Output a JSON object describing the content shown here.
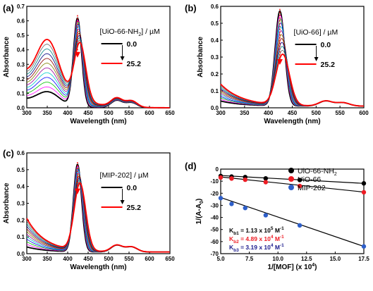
{
  "chart_data": [
    {
      "id": "a",
      "type": "line",
      "panel_label": "(a)",
      "xlabel": "Wavelength (nm)",
      "ylabel": "Absorbance",
      "xlim": [
        300,
        650
      ],
      "ylim": [
        0,
        0.7
      ],
      "xticks": [
        "300",
        "350",
        "400",
        "450",
        "500",
        "550",
        "600",
        "650"
      ],
      "yticks": [
        "0.0",
        "0.1",
        "0.2",
        "0.3",
        "0.4",
        "0.5",
        "0.6",
        "0.7"
      ],
      "legend_title": "[UiO-66-NH2] / µM",
      "legend_entries": [
        {
          "label": "0.0",
          "color": "#000000"
        },
        {
          "label": "25.2",
          "color": "#ff0000"
        }
      ],
      "series_count": 12,
      "colors": [
        "#000000",
        "#ff00ff",
        "#00c000",
        "#0000ff",
        "#00cccc",
        "#990099",
        "#808000",
        "#8b0000",
        "#000080",
        "#008080",
        "#666666",
        "#ff0000"
      ],
      "peaks": [
        {
          "x": 424,
          "h": 0.6,
          "start": 0.61,
          "end": 0.4
        },
        {
          "x": 520,
          "h": 0.05,
          "start": 0.05,
          "end": 0.06
        },
        {
          "x": 556,
          "h": 0.035,
          "start": 0.035,
          "end": 0.045
        }
      ],
      "shoulder": {
        "x": 352,
        "start": 0.09,
        "end": 0.38
      }
    },
    {
      "id": "b",
      "type": "line",
      "panel_label": "(b)",
      "xlabel": "Wavelength (nm)",
      "ylabel": "Absorbance",
      "xlim": [
        300,
        600
      ],
      "ylim": [
        0,
        0.6
      ],
      "xticks": [
        "300",
        "350",
        "400",
        "450",
        "500",
        "550",
        "600"
      ],
      "yticks": [
        "0.0",
        "0.1",
        "0.2",
        "0.3",
        "0.4",
        "0.5",
        "0.6"
      ],
      "legend_title": "[UiO-66] / µM",
      "legend_entries": [
        {
          "label": "0.0",
          "color": "#000000"
        },
        {
          "label": "25.2",
          "color": "#ff0000"
        }
      ],
      "series_count": 12,
      "colors": [
        "#000000",
        "#ff00ff",
        "#00c000",
        "#0000ff",
        "#00cccc",
        "#990099",
        "#808000",
        "#8b0000",
        "#000080",
        "#008080",
        "#666666",
        "#ff0000"
      ],
      "peaks": [
        {
          "x": 424,
          "h": 0.56,
          "start": 0.56,
          "end": 0.3
        },
        {
          "x": 520,
          "h": 0.03,
          "start": 0.03,
          "end": 0.03
        },
        {
          "x": 556,
          "h": 0.02,
          "start": 0.02,
          "end": 0.02
        }
      ],
      "baseline": {
        "start": 0.03,
        "end": 0.13
      }
    },
    {
      "id": "c",
      "type": "line",
      "panel_label": "(c)",
      "xlabel": "Wavelength (nm)",
      "ylabel": "Absorbance",
      "xlim": [
        300,
        650
      ],
      "ylim": [
        0,
        0.6
      ],
      "xticks": [
        "300",
        "350",
        "400",
        "450",
        "500",
        "550",
        "600",
        "650"
      ],
      "yticks": [
        "0.0",
        "0.1",
        "0.2",
        "0.3",
        "0.4",
        "0.5",
        "0.6"
      ],
      "legend_title": "[MIP-202] / µM",
      "legend_entries": [
        {
          "label": "0.0",
          "color": "#000000"
        },
        {
          "label": "25.2",
          "color": "#ff0000"
        }
      ],
      "series_count": 12,
      "colors": [
        "#000000",
        "#ff00ff",
        "#00c000",
        "#0000ff",
        "#00cccc",
        "#990099",
        "#808000",
        "#8b0000",
        "#000080",
        "#008080",
        "#666666",
        "#ff0000"
      ],
      "peaks": [
        {
          "x": 424,
          "h": 0.52,
          "start": 0.52,
          "end": 0.4
        },
        {
          "x": 520,
          "h": 0.04,
          "start": 0.04,
          "end": 0.04
        },
        {
          "x": 556,
          "h": 0.03,
          "start": 0.03,
          "end": 0.03
        }
      ],
      "baseline": {
        "start": 0.03,
        "end": 0.2
      }
    },
    {
      "id": "d",
      "type": "scatter",
      "panel_label": "(d)",
      "xlabel": "1/[MOF] (x 10",
      "xlabel_sup": "4",
      "xlabel_end": ")",
      "ylabel": "1/(A-A",
      "ylabel_sub": "0",
      "ylabel_end": ")",
      "xlim": [
        5,
        17.5
      ],
      "ylim": [
        -70,
        0
      ],
      "xticks": [
        "5.0",
        "7.5",
        "10.0",
        "12.5",
        "15.0",
        "17.5"
      ],
      "yticks": [
        "-70",
        "-60",
        "-50",
        "-40",
        "-30",
        "-20",
        "-10",
        "0"
      ],
      "series": [
        {
          "name": "UiO-66-NH",
          "name_sub": "2",
          "color": "#000000",
          "x": [
            5.0,
            5.95,
            7.14,
            8.93,
            11.9,
            17.5
          ],
          "y": [
            -5.7,
            -6.2,
            -6.6,
            -7.7,
            -9.0,
            -11.8
          ],
          "fit": [
            -5.3,
            -11.8
          ]
        },
        {
          "name": "UiO-66",
          "color": "#ee1c24",
          "x": [
            5.0,
            5.95,
            7.14,
            8.93,
            11.9,
            17.5
          ],
          "y": [
            -7.0,
            -7.8,
            -8.8,
            -10.8,
            -14.0,
            -19.2
          ],
          "fit": [
            -6.5,
            -19.0
          ]
        },
        {
          "name": "MIP-202",
          "color": "#2e5fc9",
          "x": [
            5.0,
            5.95,
            7.14,
            8.93,
            11.9,
            17.5
          ],
          "y": [
            -24.0,
            -28.8,
            -32.2,
            -38.2,
            -46.6,
            -64.0
          ],
          "fit": [
            -23.5,
            -64.0
          ]
        }
      ],
      "k_labels": [
        {
          "main": "K",
          "sub": "b1",
          "value": " = 1.13 x 10",
          "exp": "5",
          "unit": " M",
          "unit_exp": "-1",
          "color": "#000000"
        },
        {
          "main": "K",
          "sub": "b2",
          "value": " = 4.89 x 10",
          "exp": "4",
          "unit": " M",
          "unit_exp": "-1",
          "color": "#ee1c24"
        },
        {
          "main": "K",
          "sub": "b3",
          "value": " = 3.19 x 10",
          "exp": "4",
          "unit": " M",
          "unit_exp": "-1",
          "color": "#1a1a8c"
        }
      ]
    }
  ]
}
